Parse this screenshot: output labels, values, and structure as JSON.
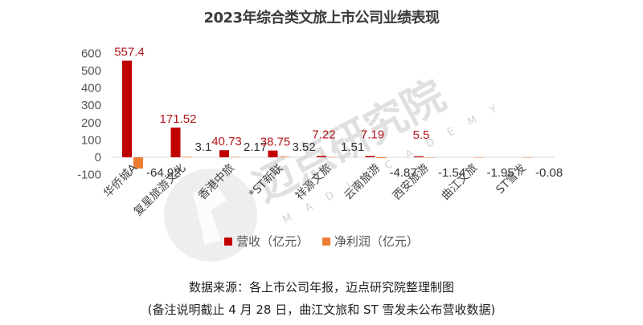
{
  "title": "2023年综合类文旅上市公司业绩表现",
  "legend": {
    "revenue": "营收（亿元）",
    "net_profit": "净利润（亿元）"
  },
  "source": "数据来源：各上市公司年报，迈点研究院整理制图",
  "note": "(备注说明截止 4 月 28 日，曲江文旅和 ST 雪发未公布营收数据)",
  "watermark": {
    "text": "迈点研究院",
    "subtext": "M A D I A C A D E M Y"
  },
  "colors": {
    "revenue": "#c00000",
    "net_profit": "#ed7d31",
    "axis": "#d9d9d9"
  },
  "chart_data": {
    "type": "bar",
    "title": "2023年综合类文旅上市公司业绩表现",
    "xlabel": "",
    "ylabel": "",
    "ylim": [
      -100,
      600
    ],
    "yticks": [
      -100,
      0,
      100,
      200,
      300,
      400,
      500,
      600
    ],
    "grid": false,
    "legend_position": "bottom",
    "categories": [
      "华侨城A",
      "复星旅游文化",
      "香港中旅",
      "*ST新联",
      "祥源文旅",
      "云南旅游",
      "西安旅游",
      "曲江文旅",
      "ST雪发"
    ],
    "series": [
      {
        "name": "营收（亿元）",
        "color": "#c00000",
        "values": [
          557.4,
          171.52,
          40.73,
          38.75,
          7.22,
          7.19,
          5.5,
          null,
          null
        ],
        "labels": [
          "557.4",
          "171.52",
          "40.73",
          "38.75",
          "7.22",
          "7.19",
          "5.5",
          "",
          ""
        ]
      },
      {
        "name": "净利润（亿元）",
        "color": "#ed7d31",
        "values": [
          -64.92,
          3.1,
          2.17,
          3.52,
          1.51,
          -4.87,
          -1.54,
          -1.95,
          -0.08
        ],
        "labels": [
          "-64.92",
          "3.1",
          "2.17",
          "3.52",
          "1.51",
          "-4.87",
          "-1.54",
          "-1.95",
          "-0.08"
        ]
      }
    ]
  }
}
